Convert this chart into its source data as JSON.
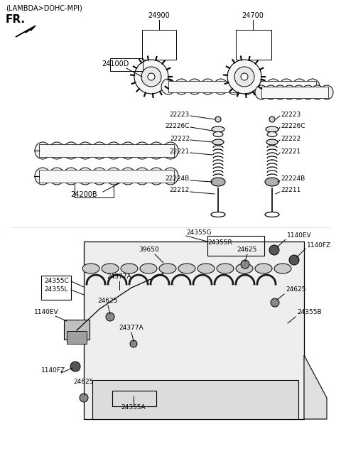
{
  "bg_color": "#ffffff",
  "line_color": "#000000",
  "text_color": "#000000",
  "fig_width": 4.8,
  "fig_height": 6.56,
  "dpi": 100,
  "labels": {
    "header": "(LAMBDA>DOHC-MPI)",
    "fr": "FR.",
    "p24900": "24900",
    "p24700": "24700",
    "p24100D": "24100D",
    "p24200B": "24200B",
    "p22223_L": "22223",
    "p22226C_L": "22226C",
    "p22222_L": "22222",
    "p22221_L": "22221",
    "p22224B_L": "22224B",
    "p22212": "22212",
    "p22223_R": "22223",
    "p22226C_R": "22226C",
    "p22222_R": "22222",
    "p22221_R": "22221",
    "p22224B_R": "22224B",
    "p22211": "22211",
    "p24355G": "24355G",
    "p24355R": "24355R",
    "p24355C": "24355C",
    "p24355L": "24355L",
    "p24355B": "24355B",
    "p24355A": "24355A",
    "p39650": "39650",
    "p24377A_top": "24377A",
    "p24377A_bot": "24377A",
    "p24625_top": "24625",
    "p24625_mid": "24625",
    "p24625_bot": "24625",
    "p1140EV_top": "1140EV",
    "p1140EV_bot": "1140EV",
    "p1140FZ_top": "1140FZ",
    "p1140FZ_bot": "1140FZ"
  }
}
